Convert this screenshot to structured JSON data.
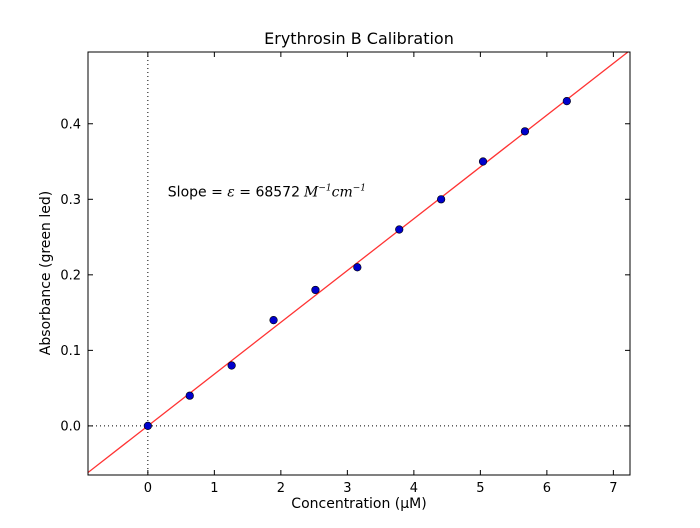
{
  "chart_data": {
    "type": "scatter",
    "title": "Erythrosin B Calibration",
    "xlabel": "Concentration (μM)",
    "ylabel": "Absorbance (green led)",
    "xlim": [
      -0.9,
      7.25
    ],
    "ylim": [
      -0.065,
      0.495
    ],
    "xticks": [
      0,
      1,
      2,
      3,
      4,
      5,
      6,
      7
    ],
    "yticks": [
      0.0,
      0.1,
      0.2,
      0.3,
      0.4
    ],
    "xtick_labels": [
      "0",
      "1",
      "2",
      "3",
      "4",
      "5",
      "6",
      "7"
    ],
    "ytick_labels": [
      "0.0",
      "0.1",
      "0.2",
      "0.3",
      "0.4"
    ],
    "grid": false,
    "reference_lines": {
      "x": 0,
      "y": 0,
      "style": "dotted"
    },
    "series": [
      {
        "type": "scatter",
        "color": "#0000cc",
        "x": [
          0,
          0.63,
          1.26,
          1.89,
          2.52,
          3.15,
          3.78,
          4.41,
          5.04,
          5.67,
          6.3
        ],
        "y": [
          0.0,
          0.04,
          0.08,
          0.14,
          0.18,
          0.21,
          0.26,
          0.3,
          0.35,
          0.39,
          0.43
        ]
      },
      {
        "type": "line",
        "color": "#ff3333",
        "slope": 0.068572,
        "intercept": 0
      }
    ],
    "annotation": {
      "prefix": "Slope = ",
      "symbol": "ε",
      "equals": " = ",
      "value": "68572",
      "unit_m": "M",
      "unit_m_exp": "−1",
      "unit_cm": "cm",
      "unit_cm_exp": "−1",
      "x": 0.3,
      "y": 0.31
    }
  }
}
